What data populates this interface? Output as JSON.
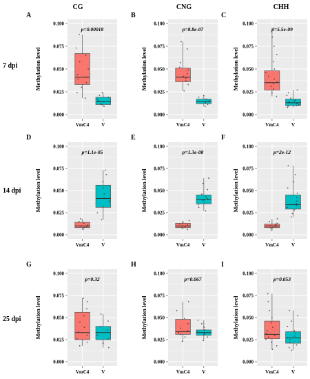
{
  "column_titles": [
    "CG",
    "CNG",
    "CHH"
  ],
  "row_labels": [
    "7 dpi",
    "14 dpi",
    "25 dpi"
  ],
  "colors": {
    "VmC4": "#f8766d",
    "V": "#00bfc4",
    "panel_bg": "#ebebeb",
    "grid": "#ffffff"
  },
  "chart_data": [
    {
      "panel": "A",
      "type": "box",
      "context": "CG",
      "timepoint": "7 dpi",
      "ylabel": "Methylation level",
      "p_label": "p=0.00018",
      "ylim": [
        0,
        0.1
      ],
      "yticks": [
        "0.000",
        "0.025",
        "0.050",
        "0.075",
        "0.100"
      ],
      "categories": [
        "VmC4",
        "V"
      ],
      "boxes": [
        {
          "name": "VmC4",
          "min": 0.018,
          "q1": 0.033,
          "median": 0.041,
          "q3": 0.067,
          "max": 0.088,
          "points": [
            0.018,
            0.024,
            0.03,
            0.035,
            0.039,
            0.041,
            0.044,
            0.05,
            0.058,
            0.065,
            0.073,
            0.088
          ]
        },
        {
          "name": "V",
          "min": 0.009,
          "q1": 0.011,
          "median": 0.014,
          "q3": 0.019,
          "max": 0.024,
          "points": [
            0.009,
            0.011,
            0.012,
            0.014,
            0.015,
            0.017,
            0.019,
            0.021,
            0.024
          ]
        }
      ]
    },
    {
      "panel": "B",
      "type": "box",
      "context": "CNG",
      "timepoint": "7 dpi",
      "ylabel": "Methylation level",
      "p_label": "p=8.8e-07",
      "ylim": [
        0,
        0.1
      ],
      "yticks": [
        "0.000",
        "0.025",
        "0.050",
        "0.075",
        "0.100"
      ],
      "categories": [
        "VmC4",
        "V"
      ],
      "boxes": [
        {
          "name": "VmC4",
          "min": 0.026,
          "q1": 0.036,
          "median": 0.041,
          "q3": 0.051,
          "max": 0.08,
          "points": [
            0.026,
            0.033,
            0.037,
            0.04,
            0.042,
            0.045,
            0.049,
            0.052,
            0.057,
            0.072,
            0.08
          ]
        },
        {
          "name": "V",
          "min": 0.009,
          "q1": 0.012,
          "median": 0.014,
          "q3": 0.017,
          "max": 0.021,
          "points": [
            0.009,
            0.011,
            0.013,
            0.014,
            0.015,
            0.017,
            0.019,
            0.021
          ]
        }
      ]
    },
    {
      "panel": "C",
      "type": "box",
      "context": "CHH",
      "timepoint": "7 dpi",
      "ylabel": "Methylation level",
      "p_label": "p=5.5e-09",
      "ylim": [
        0,
        0.1
      ],
      "yticks": [
        "0.000",
        "0.025",
        "0.050",
        "0.075",
        "0.100"
      ],
      "categories": [
        "VmC4",
        "V"
      ],
      "boxes": [
        {
          "name": "VmC4",
          "min": 0.02,
          "q1": 0.027,
          "median": 0.035,
          "q3": 0.048,
          "max": 0.095,
          "points": [
            0.02,
            0.024,
            0.028,
            0.031,
            0.034,
            0.036,
            0.039,
            0.042,
            0.046,
            0.05,
            0.058,
            0.066,
            0.075,
            0.085,
            0.095
          ]
        },
        {
          "name": "V",
          "min": 0.008,
          "q1": 0.01,
          "median": 0.013,
          "q3": 0.017,
          "max": 0.027,
          "points": [
            0.008,
            0.009,
            0.01,
            0.011,
            0.012,
            0.013,
            0.014,
            0.015,
            0.016,
            0.018,
            0.021,
            0.024,
            0.027
          ]
        }
      ]
    },
    {
      "panel": "D",
      "type": "box",
      "context": "CG",
      "timepoint": "14 dpi",
      "ylabel": "Methylation level",
      "p_label": "p=1.1e-05",
      "ylim": [
        0,
        0.1
      ],
      "yticks": [
        "0.000",
        "0.025",
        "0.050",
        "0.075",
        "0.100"
      ],
      "categories": [
        "VmC4",
        "V"
      ],
      "boxes": [
        {
          "name": "VmC4",
          "min": 0.006,
          "q1": 0.008,
          "median": 0.01,
          "q3": 0.014,
          "max": 0.018,
          "points": [
            0.006,
            0.008,
            0.009,
            0.01,
            0.011,
            0.013,
            0.015,
            0.018
          ]
        },
        {
          "name": "V",
          "min": 0.017,
          "q1": 0.031,
          "median": 0.041,
          "q3": 0.056,
          "max": 0.073,
          "points": [
            0.017,
            0.025,
            0.032,
            0.038,
            0.041,
            0.046,
            0.053,
            0.06,
            0.068,
            0.073
          ]
        }
      ]
    },
    {
      "panel": "E",
      "type": "box",
      "context": "CNG",
      "timepoint": "14 dpi",
      "ylabel": "Methylation level",
      "p_label": "p=1.3e-08",
      "ylim": [
        0,
        0.1
      ],
      "yticks": [
        "0.000",
        "0.025",
        "0.050",
        "0.075",
        "0.100"
      ],
      "categories": [
        "VmC4",
        "V"
      ],
      "boxes": [
        {
          "name": "VmC4",
          "min": 0.006,
          "q1": 0.008,
          "median": 0.01,
          "q3": 0.013,
          "max": 0.016,
          "points": [
            0.006,
            0.008,
            0.009,
            0.01,
            0.011,
            0.012,
            0.014,
            0.016
          ]
        },
        {
          "name": "V",
          "min": 0.027,
          "q1": 0.035,
          "median": 0.04,
          "q3": 0.045,
          "max": 0.064,
          "points": [
            0.027,
            0.031,
            0.034,
            0.037,
            0.039,
            0.041,
            0.043,
            0.046,
            0.051,
            0.058,
            0.064
          ]
        }
      ]
    },
    {
      "panel": "F",
      "type": "box",
      "context": "CHH",
      "timepoint": "14 dpi",
      "ylabel": "Methylation level",
      "p_label": "p=2e-12",
      "ylim": [
        0,
        0.1
      ],
      "yticks": [
        "0.000",
        "0.025",
        "0.050",
        "0.075",
        "0.100"
      ],
      "categories": [
        "VmC4",
        "V"
      ],
      "boxes": [
        {
          "name": "VmC4",
          "min": 0.005,
          "q1": 0.008,
          "median": 0.01,
          "q3": 0.012,
          "max": 0.018,
          "points": [
            0.005,
            0.007,
            0.008,
            0.009,
            0.01,
            0.011,
            0.012,
            0.013,
            0.015,
            0.018
          ]
        },
        {
          "name": "V",
          "min": 0.02,
          "q1": 0.029,
          "median": 0.034,
          "q3": 0.045,
          "max": 0.078,
          "points": [
            0.02,
            0.024,
            0.028,
            0.031,
            0.033,
            0.035,
            0.038,
            0.042,
            0.047,
            0.053,
            0.06,
            0.068,
            0.078
          ]
        }
      ]
    },
    {
      "panel": "G",
      "type": "box",
      "context": "CG",
      "timepoint": "25 dpi",
      "ylabel": "Methylation level",
      "p_label": "p=0.32",
      "ylim": [
        0,
        0.1
      ],
      "yticks": [
        "0.000",
        "0.025",
        "0.050",
        "0.075",
        "0.100"
      ],
      "categories": [
        "VmC4",
        "V"
      ],
      "boxes": [
        {
          "name": "VmC4",
          "min": 0.018,
          "q1": 0.025,
          "median": 0.033,
          "q3": 0.056,
          "max": 0.072,
          "points": [
            0.018,
            0.022,
            0.026,
            0.03,
            0.034,
            0.039,
            0.045,
            0.052,
            0.06,
            0.068,
            0.072
          ]
        },
        {
          "name": "V",
          "min": 0.016,
          "q1": 0.025,
          "median": 0.033,
          "q3": 0.04,
          "max": 0.054,
          "points": [
            0.016,
            0.021,
            0.026,
            0.03,
            0.033,
            0.036,
            0.04,
            0.046,
            0.054
          ]
        }
      ]
    },
    {
      "panel": "H",
      "type": "box",
      "context": "CNG",
      "timepoint": "25 dpi",
      "ylabel": "Methylation level",
      "p_label": "p=0.067",
      "ylim": [
        0,
        0.1
      ],
      "yticks": [
        "0.000",
        "0.025",
        "0.050",
        "0.075",
        "0.100"
      ],
      "categories": [
        "VmC4",
        "V"
      ],
      "boxes": [
        {
          "name": "VmC4",
          "min": 0.023,
          "q1": 0.031,
          "median": 0.034,
          "q3": 0.048,
          "max": 0.068,
          "points": [
            0.023,
            0.028,
            0.031,
            0.033,
            0.035,
            0.038,
            0.043,
            0.049,
            0.058,
            0.068
          ]
        },
        {
          "name": "V",
          "min": 0.024,
          "q1": 0.03,
          "median": 0.033,
          "q3": 0.036,
          "max": 0.047,
          "points": [
            0.024,
            0.028,
            0.031,
            0.032,
            0.034,
            0.036,
            0.039,
            0.043,
            0.047
          ]
        }
      ]
    },
    {
      "panel": "I",
      "type": "box",
      "context": "CHH",
      "timepoint": "25 dpi",
      "ylabel": "Methylation level",
      "p_label": "p=0.053",
      "ylim": [
        0,
        0.1
      ],
      "yticks": [
        "0.000",
        "0.025",
        "0.050",
        "0.075",
        "0.100"
      ],
      "categories": [
        "VmC4",
        "V"
      ],
      "boxes": [
        {
          "name": "VmC4",
          "min": 0.014,
          "q1": 0.026,
          "median": 0.031,
          "q3": 0.046,
          "max": 0.077,
          "points": [
            0.014,
            0.018,
            0.022,
            0.025,
            0.028,
            0.03,
            0.032,
            0.035,
            0.039,
            0.044,
            0.05,
            0.058,
            0.068,
            0.077
          ]
        },
        {
          "name": "V",
          "min": 0.013,
          "q1": 0.021,
          "median": 0.027,
          "q3": 0.034,
          "max": 0.058,
          "points": [
            0.013,
            0.016,
            0.019,
            0.022,
            0.025,
            0.027,
            0.029,
            0.032,
            0.035,
            0.04,
            0.046,
            0.052,
            0.058
          ]
        }
      ]
    }
  ]
}
